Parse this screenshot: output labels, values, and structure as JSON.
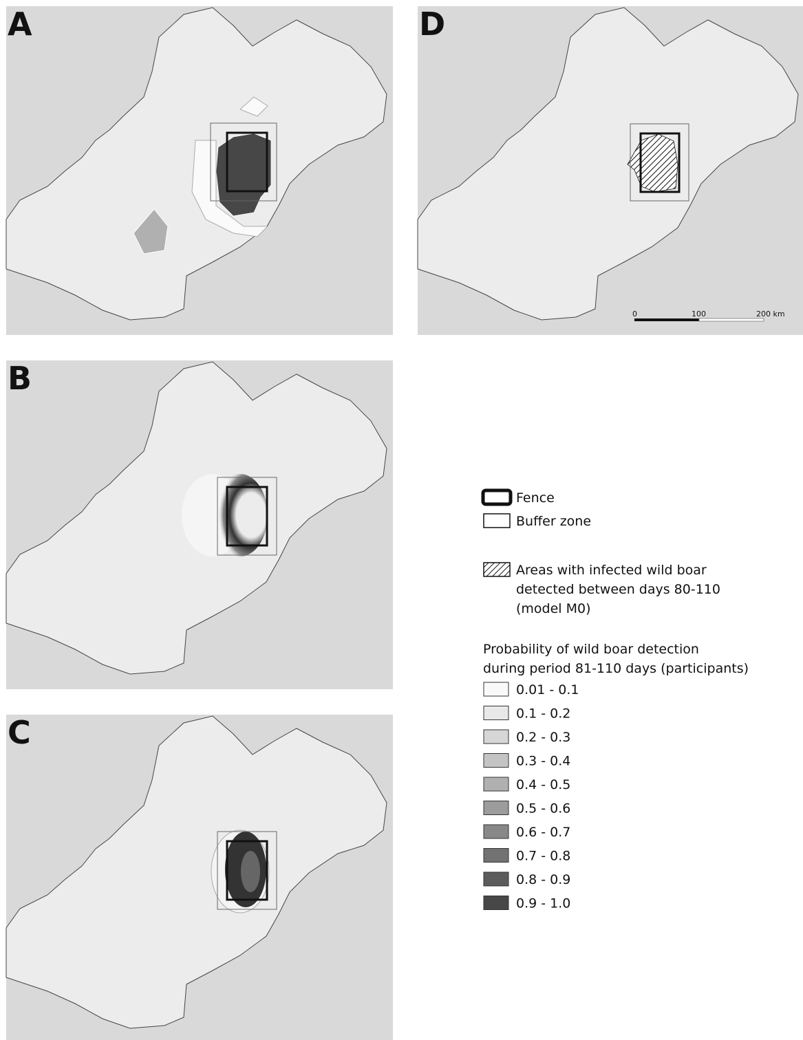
{
  "panels": [
    {
      "label": "A"
    },
    {
      "label": "D"
    },
    {
      "label": "B"
    },
    {
      "label": "C"
    }
  ],
  "scale_bar": {
    "labels": [
      "0",
      "100",
      "200 km"
    ]
  },
  "legend": {
    "fence": "Fence",
    "buffer": "Buffer zone",
    "infected": [
      "Areas with infected wild boar",
      "detected between days 80-110",
      "(model M0)"
    ],
    "probability_title": [
      "Probability of wild boar detection",
      "during period 81-110  days (participants)"
    ],
    "classes": [
      {
        "label": "0.01 - 0.1",
        "color": "#f9f9f9"
      },
      {
        "label": "0.1 - 0.2",
        "color": "#e8e8e8"
      },
      {
        "label": "0.2 - 0.3",
        "color": "#d6d6d6"
      },
      {
        "label": "0.3 - 0.4",
        "color": "#c4c4c4"
      },
      {
        "label": "0.4 - 0.5",
        "color": "#b0b0b0"
      },
      {
        "label": "0.5 - 0.6",
        "color": "#9c9c9c"
      },
      {
        "label": "0.6 - 0.7",
        "color": "#888888"
      },
      {
        "label": "0.7 - 0.8",
        "color": "#727272"
      },
      {
        "label": "0.8 - 0.9",
        "color": "#5c5c5c"
      },
      {
        "label": "0.9 - 1.0",
        "color": "#474747"
      }
    ]
  }
}
